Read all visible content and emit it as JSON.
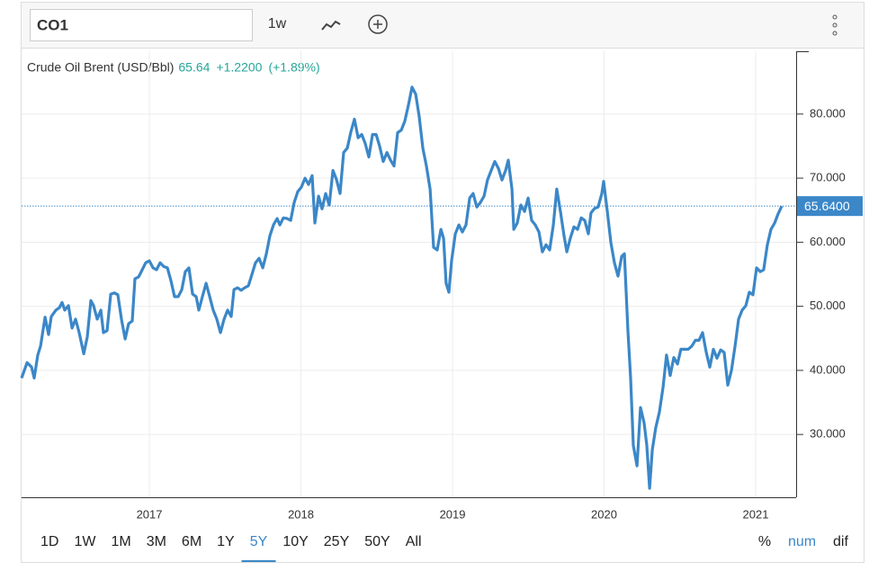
{
  "toolbar": {
    "symbol": "CO1",
    "interval": "1w"
  },
  "chart_data": {
    "type": "line",
    "legend": {
      "change": "+1.2200",
      "change_pct": "(+1.89%)"
    },
    "last_value": 65.64,
    "last_label": "65.6400",
    "xlim": [
      2016.157,
      2021.267
    ],
    "xticks": [
      2017,
      2018,
      2019,
      2020,
      2021
    ],
    "ylim": [
      20.2,
      89.8
    ],
    "yticks": [
      {
        "value": 30,
        "label": "30.000"
      },
      {
        "value": 40,
        "label": "40.000"
      },
      {
        "value": 50,
        "label": "50.000"
      },
      {
        "value": 60,
        "label": "60.000"
      },
      {
        "value": 70,
        "label": "70.000"
      },
      {
        "value": 80,
        "label": "80.000"
      }
    ],
    "grid": true,
    "x": [
      2016.157,
      2016.193,
      2016.223,
      2016.24,
      2016.264,
      2016.282,
      2016.312,
      2016.335,
      2016.353,
      2016.383,
      2016.407,
      2016.424,
      2016.442,
      2016.466,
      2016.49,
      2016.513,
      2016.537,
      2016.567,
      2016.59,
      2016.614,
      2016.632,
      2016.656,
      2016.68,
      2016.697,
      2016.721,
      2016.745,
      2016.769,
      2016.792,
      2016.816,
      2016.84,
      2016.863,
      2016.887,
      2016.905,
      2016.929,
      2016.953,
      2016.976,
      2017.0,
      2017.024,
      2017.047,
      2017.071,
      2017.095,
      2017.119,
      2017.142,
      2017.166,
      2017.19,
      2017.214,
      2017.237,
      2017.261,
      2017.285,
      2017.309,
      2017.326,
      2017.35,
      2017.374,
      2017.398,
      2017.421,
      2017.445,
      2017.469,
      2017.493,
      2017.516,
      2017.54,
      2017.558,
      2017.582,
      2017.605,
      2017.629,
      2017.653,
      2017.677,
      2017.7,
      2017.724,
      2017.748,
      2017.772,
      2017.795,
      2017.819,
      2017.843,
      2017.861,
      2017.884,
      2017.908,
      2017.932,
      2017.955,
      2017.979,
      2018.003,
      2018.027,
      2018.05,
      2018.074,
      2018.092,
      2018.116,
      2018.139,
      2018.163,
      2018.187,
      2018.211,
      2018.234,
      2018.258,
      2018.282,
      2018.306,
      2018.329,
      2018.353,
      2018.377,
      2018.401,
      2018.424,
      2018.448,
      2018.472,
      2018.496,
      2018.519,
      2018.543,
      2018.567,
      2018.591,
      2018.614,
      2018.638,
      2018.662,
      2018.685,
      2018.709,
      2018.733,
      2018.757,
      2018.78,
      2018.804,
      2018.828,
      2018.852,
      2018.875,
      2018.899,
      2018.923,
      2018.941,
      2018.958,
      2018.976,
      2018.994,
      2019.018,
      2019.042,
      2019.065,
      2019.089,
      2019.113,
      2019.136,
      2019.16,
      2019.184,
      2019.208,
      2019.231,
      2019.255,
      2019.279,
      2019.303,
      2019.326,
      2019.35,
      2019.368,
      2019.392,
      2019.404,
      2019.427,
      2019.451,
      2019.475,
      2019.499,
      2019.522,
      2019.546,
      2019.57,
      2019.593,
      2019.617,
      2019.641,
      2019.665,
      2019.688,
      2019.712,
      2019.736,
      2019.754,
      2019.777,
      2019.801,
      2019.825,
      2019.849,
      2019.872,
      2019.896,
      2019.914,
      2019.938,
      2019.961,
      2019.985,
      2019.997,
      2020.021,
      2020.045,
      2020.068,
      2020.092,
      2020.116,
      2020.134,
      2020.157,
      2020.175,
      2020.193,
      2020.217,
      2020.24,
      2020.264,
      2020.282,
      2020.3,
      2020.318,
      2020.341,
      2020.365,
      2020.389,
      2020.412,
      2020.436,
      2020.46,
      2020.484,
      2020.507,
      2020.531,
      2020.555,
      2020.579,
      2020.602,
      2020.626,
      2020.65,
      2020.674,
      2020.697,
      2020.721,
      2020.745,
      2020.769,
      2020.792,
      2020.816,
      2020.84,
      2020.864,
      2020.887,
      2020.911,
      2020.935,
      2020.958,
      2020.982,
      2021.006,
      2021.03,
      2021.053,
      2021.077,
      2021.101,
      2021.125,
      2021.148,
      2021.172
    ],
    "series": [
      {
        "name": "Crude Oil Brent (USD/Bbl)",
        "color": "#3b87c8",
        "values": [
          38.8,
          41.2,
          40.5,
          38.8,
          42.4,
          43.8,
          48.3,
          45.6,
          48.4,
          49.4,
          49.8,
          50.6,
          49.4,
          50.1,
          46.6,
          48.0,
          45.9,
          42.6,
          45.2,
          50.9,
          50.1,
          48.0,
          49.4,
          45.9,
          46.2,
          51.9,
          52.1,
          51.8,
          48.0,
          44.9,
          47.3,
          47.7,
          54.3,
          54.6,
          55.7,
          56.8,
          57.1,
          56.0,
          55.7,
          56.8,
          56.2,
          56.0,
          54.0,
          51.5,
          51.5,
          52.6,
          55.4,
          56.0,
          51.9,
          51.5,
          49.4,
          51.5,
          53.6,
          51.5,
          49.4,
          48.0,
          45.9,
          48.0,
          49.4,
          48.4,
          52.6,
          52.9,
          52.5,
          52.9,
          53.2,
          55.0,
          56.8,
          57.5,
          56.0,
          58.2,
          61.0,
          62.7,
          63.7,
          62.7,
          63.8,
          63.7,
          63.4,
          66.2,
          67.9,
          68.6,
          70.0,
          69.0,
          70.4,
          63.0,
          67.2,
          65.2,
          67.6,
          65.8,
          71.2,
          69.8,
          67.6,
          74.0,
          74.7,
          77.2,
          79.2,
          76.3,
          76.8,
          75.4,
          73.3,
          76.8,
          76.8,
          75.0,
          72.6,
          74.0,
          72.8,
          71.9,
          77.1,
          77.5,
          78.9,
          81.4,
          84.2,
          83.1,
          79.6,
          74.7,
          71.9,
          68.3,
          59.2,
          58.8,
          62.0,
          60.6,
          53.6,
          52.2,
          57.1,
          61.3,
          62.7,
          61.6,
          62.7,
          66.9,
          67.6,
          65.5,
          66.2,
          67.2,
          69.7,
          71.2,
          72.6,
          71.5,
          69.7,
          71.2,
          72.8,
          68.3,
          62.0,
          63.0,
          65.8,
          64.8,
          66.9,
          63.4,
          62.7,
          61.6,
          58.5,
          59.6,
          58.8,
          62.7,
          68.3,
          64.8,
          61.0,
          58.5,
          60.6,
          62.4,
          62.0,
          63.8,
          63.4,
          61.3,
          64.6,
          65.3,
          65.5,
          67.6,
          69.5,
          64.8,
          59.9,
          56.8,
          54.7,
          57.8,
          58.2,
          46.2,
          38.8,
          28.3,
          25.1,
          34.2,
          31.8,
          28.3,
          21.6,
          27.6,
          31.1,
          33.5,
          37.4,
          42.4,
          39.2,
          42.0,
          41.0,
          43.3,
          43.3,
          43.3,
          43.8,
          44.7,
          44.7,
          45.9,
          42.8,
          40.5,
          43.3,
          41.9,
          43.2,
          42.8,
          37.7,
          40.0,
          43.8,
          48.0,
          49.4,
          50.1,
          52.2,
          51.8,
          56.0,
          55.4,
          55.7,
          59.6,
          62.0,
          63.0,
          64.4,
          65.64
        ]
      }
    ]
  },
  "ranges": [
    "1D",
    "1W",
    "1M",
    "3M",
    "6M",
    "1Y",
    "5Y",
    "10Y",
    "25Y",
    "50Y",
    "All"
  ],
  "selected_range": "5Y",
  "modes": [
    "%",
    "num",
    "dif"
  ],
  "selected_mode": "num"
}
